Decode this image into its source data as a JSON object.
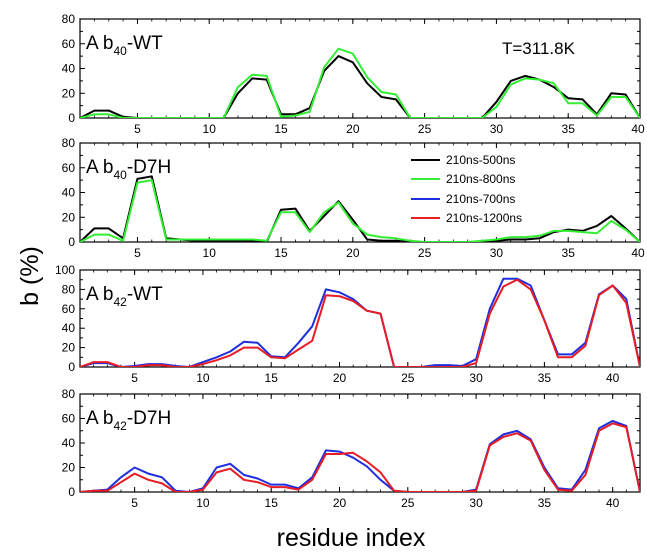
{
  "figure": {
    "ylabel": "b (%)",
    "xlabel": "residue index",
    "annotation": "T=311.8K"
  },
  "legend": [
    {
      "label": "210ns-500ns",
      "color": "#000000"
    },
    {
      "label": "210ns-800ns",
      "color": "#33ee33"
    },
    {
      "label": "210ns-700ns",
      "color": "#1f2fe0"
    },
    {
      "label": "210ns-1200ns",
      "color": "#e81c24"
    }
  ],
  "panels": [
    {
      "label_main": "A b",
      "label_sub": "40",
      "label_tail": "-WT",
      "yticks": [
        "0",
        "20",
        "40",
        "60",
        "80"
      ],
      "xticks": [
        "5",
        "10",
        "15",
        "20",
        "25",
        "30",
        "35",
        "40"
      ]
    },
    {
      "label_main": "A b",
      "label_sub": "40",
      "label_tail": "-D7H",
      "yticks": [
        "0",
        "20",
        "40",
        "60",
        "80"
      ],
      "xticks": [
        "5",
        "10",
        "15",
        "20",
        "25",
        "30",
        "35",
        "40"
      ]
    },
    {
      "label_main": "A b",
      "label_sub": "42",
      "label_tail": "-WT",
      "yticks": [
        "0",
        "20",
        "40",
        "60",
        "80",
        "100"
      ],
      "xticks": [
        "5",
        "10",
        "15",
        "20",
        "25",
        "30",
        "35",
        "40"
      ]
    },
    {
      "label_main": "A b",
      "label_sub": "42",
      "label_tail": "-D7H",
      "yticks": [
        "0",
        "20",
        "40",
        "60",
        "80"
      ],
      "xticks": [
        "5",
        "10",
        "15",
        "20",
        "25",
        "30",
        "35",
        "40"
      ]
    }
  ],
  "chart_data": [
    {
      "type": "line",
      "title": "Ab40-WT",
      "xlabel": "residue index",
      "ylabel": "b (%)",
      "xlim": [
        1,
        40
      ],
      "ylim": [
        0,
        80
      ],
      "series": [
        {
          "name": "210ns-500ns",
          "color": "#000000",
          "x": [
            1,
            2,
            3,
            4,
            5,
            6,
            7,
            8,
            9,
            10,
            11,
            12,
            13,
            14,
            15,
            16,
            17,
            18,
            19,
            20,
            21,
            22,
            23,
            24,
            25,
            26,
            27,
            28,
            29,
            30,
            31,
            32,
            33,
            34,
            35,
            36,
            37,
            38,
            39,
            40
          ],
          "y": [
            0,
            6,
            6,
            1,
            0,
            0,
            0,
            0,
            0,
            0,
            0,
            20,
            32,
            31,
            3,
            3,
            8,
            38,
            50,
            45,
            28,
            17,
            15,
            0,
            0,
            0,
            0,
            0,
            0,
            13,
            30,
            34,
            31,
            25,
            16,
            15,
            3,
            20,
            19,
            0
          ]
        },
        {
          "name": "210ns-800ns",
          "color": "#33ee33",
          "x": [
            1,
            2,
            3,
            4,
            5,
            6,
            7,
            8,
            9,
            10,
            11,
            12,
            13,
            14,
            15,
            16,
            17,
            18,
            19,
            20,
            21,
            22,
            23,
            24,
            25,
            26,
            27,
            28,
            29,
            30,
            31,
            32,
            33,
            34,
            35,
            36,
            37,
            38,
            39,
            40
          ],
          "y": [
            0,
            3,
            3,
            0,
            0,
            0,
            0,
            0,
            0,
            0,
            0,
            25,
            35,
            34,
            1,
            2,
            5,
            41,
            56,
            52,
            33,
            21,
            19,
            0,
            0,
            0,
            0,
            0,
            0,
            9,
            27,
            32,
            31,
            28,
            12,
            12,
            2,
            17,
            17,
            0
          ]
        }
      ]
    },
    {
      "type": "line",
      "title": "Ab40-D7H",
      "xlabel": "residue index",
      "ylabel": "b (%)",
      "xlim": [
        1,
        40
      ],
      "ylim": [
        0,
        80
      ],
      "series": [
        {
          "name": "210ns-500ns",
          "color": "#000000",
          "x": [
            1,
            2,
            3,
            4,
            5,
            6,
            7,
            8,
            9,
            10,
            11,
            12,
            13,
            14,
            15,
            16,
            17,
            18,
            19,
            20,
            21,
            22,
            23,
            24,
            25,
            26,
            27,
            28,
            29,
            30,
            31,
            32,
            33,
            34,
            35,
            36,
            37,
            38,
            39,
            40
          ],
          "y": [
            0,
            11,
            11,
            3,
            51,
            53,
            3,
            2,
            1,
            1,
            1,
            1,
            1,
            0,
            26,
            27,
            9,
            21,
            33,
            18,
            2,
            1,
            1,
            0,
            0,
            0,
            0,
            0,
            0,
            1,
            2,
            2,
            3,
            8,
            10,
            9,
            13,
            21,
            11,
            0
          ]
        },
        {
          "name": "210ns-800ns",
          "color": "#33ee33",
          "x": [
            1,
            2,
            3,
            4,
            5,
            6,
            7,
            8,
            9,
            10,
            11,
            12,
            13,
            14,
            15,
            16,
            17,
            18,
            19,
            20,
            21,
            22,
            23,
            24,
            25,
            26,
            27,
            28,
            29,
            30,
            31,
            32,
            33,
            34,
            35,
            36,
            37,
            38,
            39,
            40
          ],
          "y": [
            0,
            6,
            6,
            1,
            48,
            50,
            2,
            2,
            2,
            2,
            2,
            2,
            2,
            1,
            24,
            24,
            8,
            24,
            32,
            15,
            6,
            4,
            3,
            1,
            0,
            0,
            0,
            0,
            1,
            2,
            4,
            4,
            5,
            9,
            9,
            8,
            7,
            17,
            10,
            0
          ]
        }
      ]
    },
    {
      "type": "line",
      "title": "Ab42-WT",
      "xlabel": "residue index",
      "ylabel": "b (%)",
      "xlim": [
        1,
        42
      ],
      "ylim": [
        0,
        100
      ],
      "series": [
        {
          "name": "210ns-700ns",
          "color": "#1f2fe0",
          "x": [
            1,
            2,
            3,
            4,
            5,
            6,
            7,
            8,
            9,
            10,
            11,
            12,
            13,
            14,
            15,
            16,
            17,
            18,
            19,
            20,
            21,
            22,
            23,
            24,
            25,
            26,
            27,
            28,
            29,
            30,
            31,
            32,
            33,
            34,
            35,
            36,
            37,
            38,
            39,
            40,
            41,
            42
          ],
          "y": [
            0,
            4,
            4,
            0,
            1,
            3,
            3,
            1,
            0,
            5,
            10,
            16,
            26,
            25,
            11,
            10,
            25,
            42,
            80,
            77,
            70,
            58,
            55,
            0,
            0,
            0,
            2,
            2,
            1,
            8,
            60,
            91,
            91,
            84,
            48,
            13,
            13,
            25,
            75,
            84,
            70,
            0
          ]
        },
        {
          "name": "210ns-1200ns",
          "color": "#e81c24",
          "x": [
            1,
            2,
            3,
            4,
            5,
            6,
            7,
            8,
            9,
            10,
            11,
            12,
            13,
            14,
            15,
            16,
            17,
            18,
            19,
            20,
            21,
            22,
            23,
            24,
            25,
            26,
            27,
            28,
            29,
            30,
            31,
            32,
            33,
            34,
            35,
            36,
            37,
            38,
            39,
            40,
            41,
            42
          ],
          "y": [
            0,
            5,
            5,
            0,
            0,
            2,
            2,
            0,
            0,
            3,
            7,
            12,
            20,
            20,
            10,
            9,
            18,
            27,
            74,
            73,
            68,
            58,
            55,
            0,
            0,
            0,
            0,
            0,
            0,
            4,
            55,
            83,
            90,
            80,
            48,
            10,
            10,
            22,
            74,
            84,
            66,
            0
          ]
        }
      ]
    },
    {
      "type": "line",
      "title": "Ab42-D7H",
      "xlabel": "residue index",
      "ylabel": "b (%)",
      "xlim": [
        1,
        42
      ],
      "ylim": [
        0,
        80
      ],
      "series": [
        {
          "name": "210ns-700ns",
          "color": "#1f2fe0",
          "x": [
            1,
            2,
            3,
            4,
            5,
            6,
            7,
            8,
            9,
            10,
            11,
            12,
            13,
            14,
            15,
            16,
            17,
            18,
            19,
            20,
            21,
            22,
            23,
            24,
            25,
            26,
            27,
            28,
            29,
            30,
            31,
            32,
            33,
            34,
            35,
            36,
            37,
            38,
            39,
            40,
            41,
            42
          ],
          "y": [
            0,
            1,
            2,
            12,
            20,
            15,
            12,
            1,
            0,
            3,
            20,
            23,
            14,
            11,
            6,
            6,
            3,
            12,
            34,
            33,
            28,
            21,
            10,
            1,
            0,
            0,
            0,
            0,
            0,
            2,
            39,
            47,
            50,
            43,
            20,
            3,
            2,
            18,
            52,
            58,
            54,
            0
          ]
        },
        {
          "name": "210ns-1200ns",
          "color": "#e81c24",
          "x": [
            1,
            2,
            3,
            4,
            5,
            6,
            7,
            8,
            9,
            10,
            11,
            12,
            13,
            14,
            15,
            16,
            17,
            18,
            19,
            20,
            21,
            22,
            23,
            24,
            25,
            26,
            27,
            28,
            29,
            30,
            31,
            32,
            33,
            34,
            35,
            36,
            37,
            38,
            39,
            40,
            41,
            42
          ],
          "y": [
            0,
            1,
            1,
            8,
            15,
            10,
            7,
            0,
            0,
            2,
            16,
            19,
            10,
            8,
            4,
            4,
            2,
            10,
            31,
            31,
            32,
            25,
            16,
            1,
            0,
            0,
            0,
            0,
            0,
            1,
            38,
            45,
            48,
            42,
            18,
            2,
            1,
            14,
            50,
            56,
            53,
            0
          ]
        }
      ]
    }
  ]
}
